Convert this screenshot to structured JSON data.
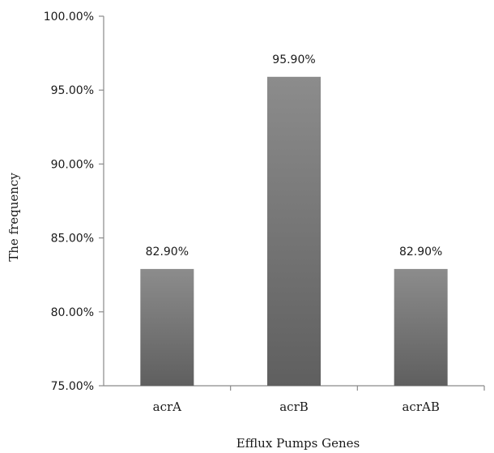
{
  "chart_data": {
    "type": "bar",
    "categories": [
      "acrA",
      "acrB",
      "acrAB"
    ],
    "values": [
      82.9,
      95.9,
      82.9
    ],
    "data_labels": [
      "82.90%",
      "95.90%",
      "82.90%"
    ],
    "title": "",
    "xlabel": "Efflux Pumps  Genes",
    "ylabel": "The frequency",
    "ylim": [
      75,
      100
    ],
    "y_ticks": [
      75,
      80,
      85,
      90,
      95,
      100
    ],
    "y_tick_labels": [
      "75.00%",
      "80.00%",
      "85.00%",
      "90.00%",
      "95.00%",
      "100.00%"
    ],
    "grid": false,
    "legend": "none",
    "bar_color_top": "#8c8c8c",
    "bar_color_bottom": "#5f5f5f",
    "axis_color": "#8a8a8a"
  }
}
